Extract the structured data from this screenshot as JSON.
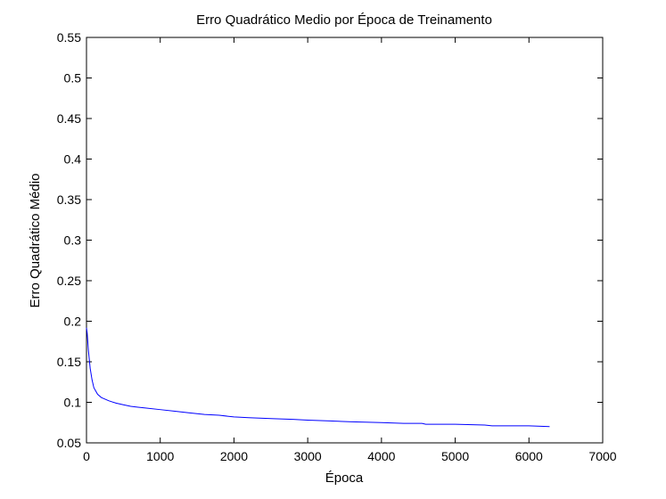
{
  "chart_data": {
    "type": "line",
    "title": "Erro Quadrático Medio por Época de Treinamento",
    "xlabel": "Época",
    "ylabel": "Erro Quadrático Médio",
    "xlim": [
      0,
      7000
    ],
    "ylim": [
      0.05,
      0.55
    ],
    "xticks": [
      0,
      1000,
      2000,
      3000,
      4000,
      5000,
      6000,
      7000
    ],
    "yticks": [
      0.05,
      0.1,
      0.15,
      0.2,
      0.25,
      0.3,
      0.35,
      0.4,
      0.45,
      0.5,
      0.55
    ],
    "grid": false,
    "line_color": "#0000ff",
    "series": [
      {
        "x": [
          0,
          10,
          25,
          50,
          75,
          100,
          150,
          200,
          300,
          400,
          500,
          600,
          700,
          800,
          1000,
          1200,
          1400,
          1600,
          1800,
          2000,
          2200,
          2500,
          2800,
          3000,
          3300,
          3600,
          4000,
          4300,
          4550,
          4600,
          5000,
          5400,
          5500,
          6000,
          6280
        ],
        "y": [
          0.192,
          0.185,
          0.165,
          0.142,
          0.128,
          0.118,
          0.11,
          0.106,
          0.102,
          0.099,
          0.097,
          0.095,
          0.094,
          0.093,
          0.091,
          0.089,
          0.087,
          0.085,
          0.084,
          0.082,
          0.081,
          0.08,
          0.079,
          0.078,
          0.077,
          0.076,
          0.075,
          0.074,
          0.074,
          0.073,
          0.073,
          0.072,
          0.071,
          0.071,
          0.07
        ]
      }
    ]
  }
}
